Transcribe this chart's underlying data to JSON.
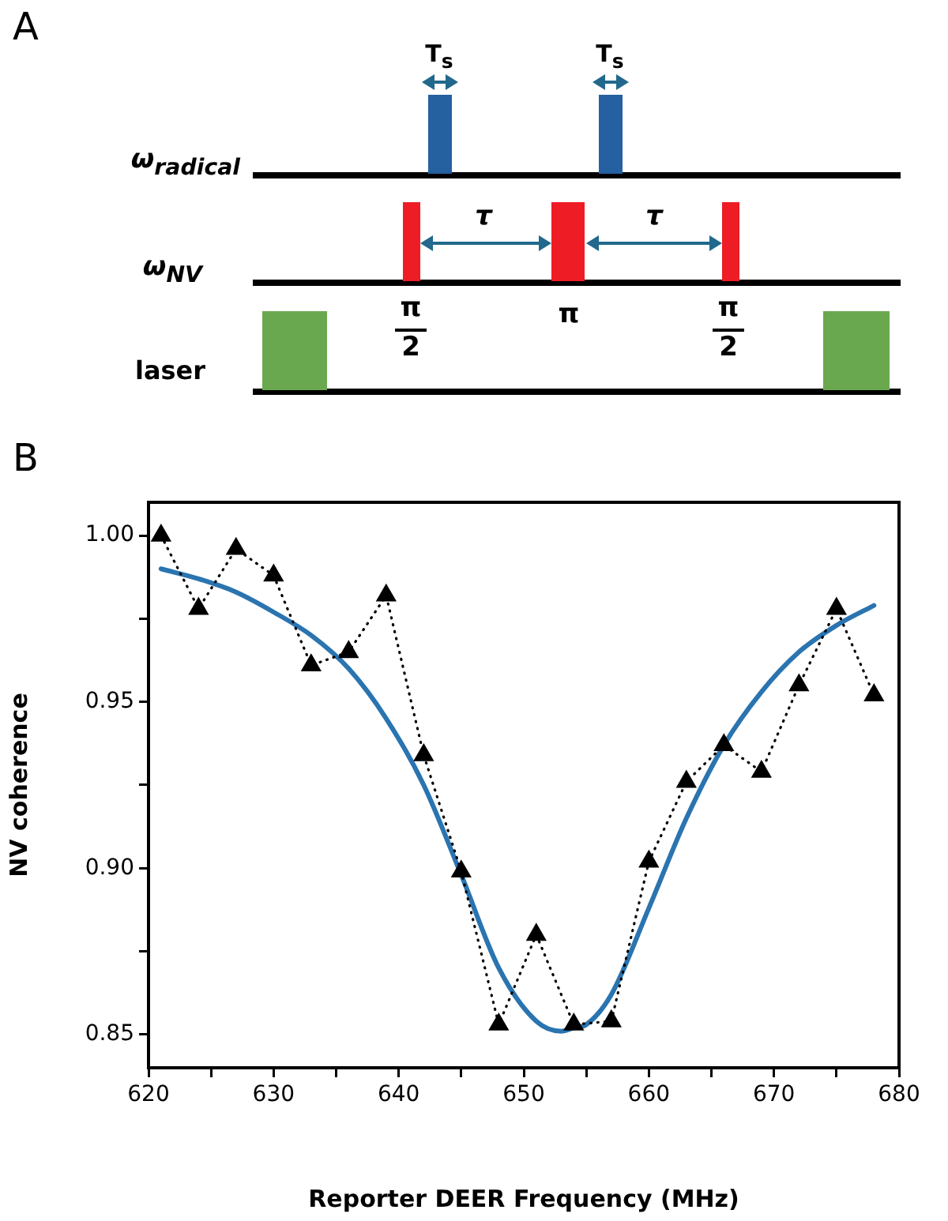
{
  "chart_data": [
    {
      "type": "other",
      "annotations": [
        "A",
        "T$_{s}$",
        "T$_{s}$",
        "ω$_{radical}$",
        "τ",
        "τ",
        "ω$_{NV}$",
        "π",
        "2",
        "π",
        "π",
        "2",
        "laser"
      ]
    },
    {
      "type": "line",
      "annotations": [
        "B"
      ],
      "xlabel": "Reporter DEER Frequency (MHz)",
      "ylabel": "NV coherence",
      "xlim": [
        620,
        680
      ],
      "ylim": [
        0.84,
        1.01
      ],
      "xticks": [
        620,
        {
          "value": 625,
          "label": null
        },
        630,
        {
          "value": 635,
          "label": null
        },
        640,
        {
          "value": 645,
          "label": null
        },
        650,
        {
          "value": 655,
          "label": null
        },
        660,
        {
          "value": 665,
          "label": null
        },
        670,
        {
          "value": 675,
          "label": null
        },
        680
      ],
      "yticks": [
        {
          "value": 0.85,
          "label": "0.85"
        },
        {
          "value": 0.875,
          "label": null
        },
        {
          "value": 0.9,
          "label": "0.90"
        },
        {
          "value": 0.925,
          "label": null
        },
        {
          "value": 0.95,
          "label": "0.95"
        },
        {
          "value": 0.975,
          "label": null
        },
        {
          "value": 1.0,
          "label": "1.00"
        }
      ],
      "grid": false,
      "series": [
        {
          "type": "line",
          "color": "#000000",
          "marker": "triangle",
          "line_style": "dotted",
          "x": [
            621,
            624,
            627,
            630,
            633,
            636,
            639,
            642,
            645,
            648,
            651,
            654,
            657,
            660,
            663,
            666,
            669,
            672,
            675,
            678
          ],
          "values": [
            1.0,
            0.978,
            0.996,
            0.988,
            0.961,
            0.965,
            0.982,
            0.934,
            0.899,
            0.853,
            0.88,
            0.853,
            0.854,
            0.902,
            0.926,
            0.937,
            0.929,
            0.955,
            0.978,
            0.952
          ]
        },
        {
          "type": "line",
          "color": "#2a74b0",
          "marker": "none",
          "line_style": "solid",
          "x": [
            621,
            624,
            627,
            630,
            633,
            636,
            639,
            642,
            645,
            648,
            651,
            653,
            654,
            655,
            657,
            660,
            663,
            666,
            669,
            672,
            675,
            678
          ],
          "values": [
            0.99,
            0.987,
            0.983,
            0.977,
            0.97,
            0.96,
            0.945,
            0.925,
            0.898,
            0.87,
            0.854,
            0.851,
            0.852,
            0.853,
            0.862,
            0.888,
            0.915,
            0.937,
            0.953,
            0.965,
            0.973,
            0.979
          ]
        }
      ]
    }
  ]
}
